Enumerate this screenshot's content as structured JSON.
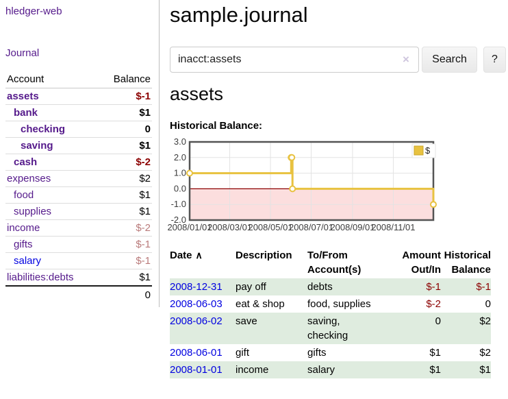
{
  "app": {
    "brand": "hledger-web",
    "nav_journal": "Journal"
  },
  "sidebar": {
    "header": {
      "account": "Account",
      "balance": "Balance"
    },
    "accounts": [
      {
        "name": "assets",
        "depth": 0,
        "balance": "$-1",
        "bold": true,
        "negative": true
      },
      {
        "name": "bank",
        "depth": 1,
        "balance": "$1",
        "bold": true,
        "negative": false
      },
      {
        "name": "checking",
        "depth": 2,
        "balance": "0",
        "bold": true,
        "negative": false
      },
      {
        "name": "saving",
        "depth": 2,
        "balance": "$1",
        "bold": true,
        "negative": false
      },
      {
        "name": "cash",
        "depth": 1,
        "balance": "$-2",
        "bold": true,
        "negative": true
      },
      {
        "name": "expenses",
        "depth": 0,
        "balance": "$2",
        "bold": false,
        "negative": false
      },
      {
        "name": "food",
        "depth": 1,
        "balance": "$1",
        "bold": false,
        "negative": false
      },
      {
        "name": "supplies",
        "depth": 1,
        "balance": "$1",
        "bold": false,
        "negative": false
      },
      {
        "name": "income",
        "depth": 0,
        "balance": "$-2",
        "bold": false,
        "negative": true
      },
      {
        "name": "gifts",
        "depth": 1,
        "balance": "$-1",
        "bold": false,
        "negative": true
      },
      {
        "name": "salary",
        "depth": 1,
        "balance": "$-1",
        "bold": false,
        "negative": true,
        "blue": true
      },
      {
        "name": "liabilities:debts",
        "depth": 0,
        "balance": "$1",
        "bold": false,
        "negative": false
      }
    ],
    "total": "0"
  },
  "header": {
    "title": "sample.journal"
  },
  "search": {
    "value": "inacct:assets",
    "clear_icon": "×",
    "button": "Search",
    "help_button": "?"
  },
  "account_page": {
    "title": "assets",
    "chart_label": "Historical Balance:"
  },
  "chart_data": {
    "type": "line",
    "step": true,
    "title": "Historical Balance",
    "legend": [
      {
        "label": "$",
        "color": "#e8c240"
      }
    ],
    "series": [
      {
        "name": "$",
        "color": "#e8c240",
        "points": [
          [
            "2008-01-01",
            1
          ],
          [
            "2008-06-01",
            2
          ],
          [
            "2008-06-02",
            2
          ],
          [
            "2008-06-03",
            0
          ],
          [
            "2008-12-31",
            -1
          ]
        ]
      }
    ],
    "xlim": [
      "2008-01-01",
      "2008-12-31"
    ],
    "ylim": [
      -2,
      3
    ],
    "x_ticks": [
      "2008/01/01",
      "2008/03/01",
      "2008/05/01",
      "2008/07/01",
      "2008/09/01",
      "2008/11/01"
    ],
    "y_ticks": [
      3.0,
      2.0,
      1.0,
      0.0,
      -1.0,
      -2.0
    ],
    "grid": true,
    "legend_position": "top-right",
    "negative_region_color": "#fcdede",
    "zero_line_color": "#8b0000",
    "border_color": "#545454",
    "grid_color": "#e3e3e3"
  },
  "register": {
    "columns": {
      "date": "Date",
      "sort_icon": "∧",
      "description": "Description",
      "accounts": "To/From Account(s)",
      "amount": "Amount Out/In",
      "balance": "Historical Balance"
    },
    "rows": [
      {
        "date": "2008-12-31",
        "description": "pay off",
        "accounts": "debts",
        "amount": "$-1",
        "amount_neg": true,
        "balance": "$-1",
        "balance_neg": true,
        "shaded": true
      },
      {
        "date": "2008-06-03",
        "description": "eat & shop",
        "accounts": "food, supplies",
        "amount": "$-2",
        "amount_neg": true,
        "balance": "0",
        "balance_neg": false,
        "shaded": false
      },
      {
        "date": "2008-06-02",
        "description": "save",
        "accounts": "saving, checking",
        "amount": "0",
        "amount_neg": false,
        "balance": "$2",
        "balance_neg": false,
        "shaded": true
      },
      {
        "date": "2008-06-01",
        "description": "gift",
        "accounts": "gifts",
        "amount": "$1",
        "amount_neg": false,
        "balance": "$2",
        "balance_neg": false,
        "shaded": false
      },
      {
        "date": "2008-01-01",
        "description": "income",
        "accounts": "salary",
        "amount": "$1",
        "amount_neg": false,
        "balance": "$1",
        "balance_neg": false,
        "shaded": true
      }
    ]
  }
}
